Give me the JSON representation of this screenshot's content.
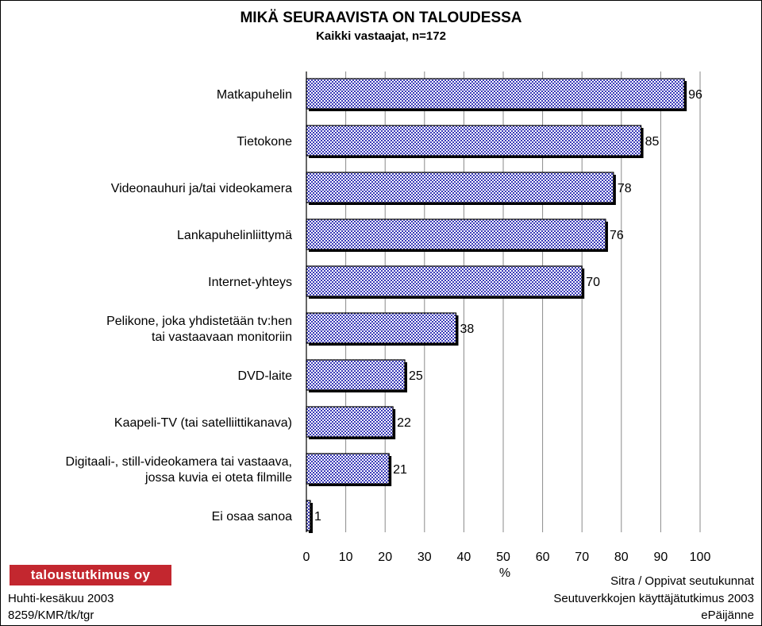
{
  "title": "MIKÄ SEURAAVISTA ON TALOUDESSA",
  "subtitle": "Kaikki vastaajat, n=172",
  "chart_data": {
    "type": "bar",
    "orientation": "horizontal",
    "categories": [
      [
        "Matkapuhelin"
      ],
      [
        "Tietokone"
      ],
      [
        "Videonauhuri ja/tai videokamera"
      ],
      [
        "Lankapuhelinliittymä"
      ],
      [
        "Internet-yhteys"
      ],
      [
        "Pelikone, joka yhdistetään tv:hen",
        "tai vastaavaan monitoriin"
      ],
      [
        "DVD-laite"
      ],
      [
        "Kaapeli-TV (tai satelliittikanava)"
      ],
      [
        "Digitaali-, still-videokamera tai vastaava,",
        "jossa kuvia ei oteta filmille"
      ],
      [
        "Ei osaa sanoa"
      ]
    ],
    "values": [
      96,
      85,
      78,
      76,
      70,
      38,
      25,
      22,
      21,
      1
    ],
    "xlabel": "%",
    "xlim": [
      0,
      100
    ],
    "xticks": [
      "0",
      "10",
      "20",
      "30",
      "40",
      "50",
      "60",
      "70",
      "80",
      "90",
      "100"
    ],
    "grid": "vertical",
    "bar_color": "#6b6bd6"
  },
  "logo": "taloustutkimus oy",
  "footer_left": [
    "Huhti-kesäkuu 2003",
    "8259/KMR/tk/tgr"
  ],
  "footer_right": [
    "Sitra / Oppivat seutukunnat",
    "Seutuverkkojen käyttäjätutkimus 2003",
    "ePäijänne"
  ]
}
